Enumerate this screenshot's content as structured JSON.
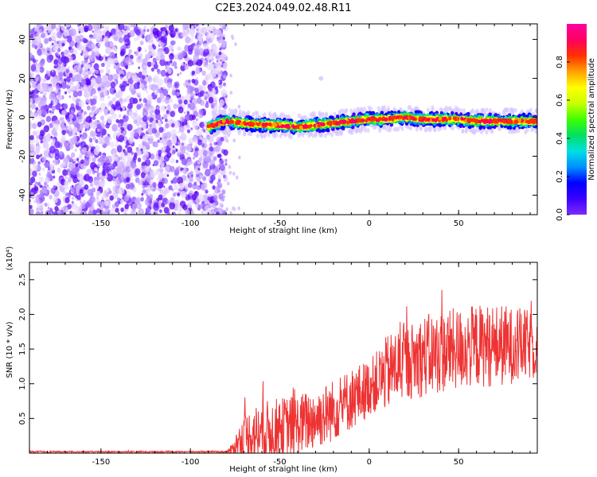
{
  "figure": {
    "title": "C2E3.2024.049.02.48.R11"
  },
  "chart_data": [
    {
      "type": "heatmap",
      "title": "C2E3.2024.049.02.48.R11",
      "xlabel": "Height of straight line (km)",
      "ylabel": "Frequency (Hz)",
      "xlim": [
        -190,
        94
      ],
      "ylim": [
        -50,
        48
      ],
      "xticks": [
        -150,
        -100,
        -50,
        0,
        50
      ],
      "yticks": [
        40,
        20,
        0,
        -20,
        -40
      ],
      "colorbar": {
        "label": "Normalized spectral amplitude",
        "range": [
          0.0,
          1.0
        ],
        "ticks": [
          0.0,
          0.2,
          0.4,
          0.6,
          0.8
        ],
        "colormap": [
          "#7b2cff",
          "#3c00ff",
          "#0000ff",
          "#0090ff",
          "#00e0e0",
          "#00e060",
          "#40ff00",
          "#c8ff00",
          "#ffff00",
          "#ffa000",
          "#ff3000",
          "#ff0060",
          "#ff00a0"
        ]
      },
      "noise_region": {
        "x_range": [
          -190,
          -80
        ],
        "color": "#8a2be2"
      },
      "signal_ridge": {
        "x": [
          -90,
          -80,
          -70,
          -60,
          -50,
          -40,
          -30,
          -20,
          -10,
          0,
          10,
          20,
          30,
          40,
          50,
          60,
          70,
          80,
          94
        ],
        "frequency": [
          -5,
          -2,
          -3,
          -4,
          -4,
          -5,
          -4,
          -3,
          -2,
          -1,
          -1,
          0,
          -1,
          -1,
          -1,
          -2,
          -2,
          -2,
          -2
        ]
      },
      "outlier_point": {
        "x": -27,
        "frequency": 20
      }
    },
    {
      "type": "line",
      "xlabel": "Height of straight line (km)",
      "ylabel": "SNR (10 * v/v)",
      "yscale_label": "(x10⁴)",
      "xlim": [
        -190,
        94
      ],
      "ylim": [
        0,
        2.75
      ],
      "xticks": [
        -150,
        -100,
        -50,
        0,
        50
      ],
      "yticks": [
        0.5,
        1.0,
        1.5,
        2.0,
        2.5
      ],
      "series": [
        {
          "color": "#ee3333",
          "envelope": {
            "x": [
              -190,
              -80,
              -77,
              -75,
              -70,
              -65,
              -60,
              -55,
              -50,
              -45,
              -40,
              -35,
              -30,
              -25,
              -20,
              -15,
              -10,
              -5,
              0,
              5,
              10,
              15,
              20,
              25,
              30,
              35,
              40,
              45,
              50,
              55,
              60,
              65,
              70,
              75,
              80,
              85,
              90,
              94
            ],
            "base": [
              0.02,
              0.02,
              0.04,
              0.12,
              0.22,
              0.28,
              0.3,
              0.32,
              0.35,
              0.38,
              0.4,
              0.45,
              0.5,
              0.55,
              0.62,
              0.7,
              0.78,
              0.85,
              0.95,
              1.05,
              1.15,
              1.25,
              1.3,
              1.35,
              1.4,
              1.42,
              1.45,
              1.48,
              1.5,
              1.52,
              1.55,
              1.55,
              1.55,
              1.55,
              1.55,
              1.55,
              1.55,
              1.55
            ],
            "amp": [
              0.01,
              0.01,
              0.08,
              0.15,
              0.35,
              0.4,
              0.45,
              0.45,
              0.45,
              0.45,
              0.45,
              0.45,
              0.45,
              0.45,
              0.45,
              0.45,
              0.45,
              0.45,
              0.4,
              0.45,
              0.55,
              0.55,
              0.55,
              0.55,
              0.6,
              0.6,
              0.6,
              0.6,
              0.6,
              0.6,
              0.6,
              0.6,
              0.6,
              0.6,
              0.55,
              0.55,
              0.5,
              0.5
            ]
          }
        }
      ]
    }
  ]
}
